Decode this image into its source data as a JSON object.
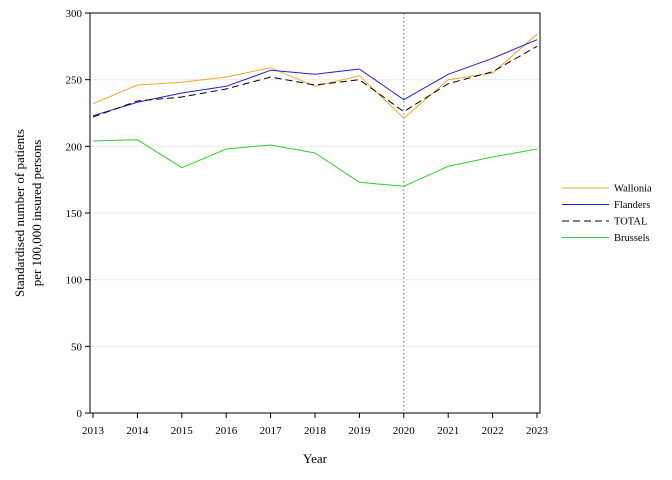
{
  "chart_data": {
    "type": "line",
    "title": "",
    "xlabel": "Year",
    "ylabel_line1": "Standardised number of patients",
    "ylabel_line2": "per 100,000 insured persons",
    "x": [
      "2013",
      "2014",
      "2015",
      "2016",
      "2017",
      "2018",
      "2019",
      "2020",
      "2021",
      "2022",
      "2023"
    ],
    "ylim": [
      0,
      300
    ],
    "yticks": [
      0,
      50,
      100,
      150,
      200,
      250,
      300
    ],
    "grid": "horizontal",
    "reference_line_x": "2020",
    "legend_position": "right",
    "series": [
      {
        "name": "Wallonia",
        "color": "#F5A623",
        "dash": "solid",
        "values": [
          232,
          246,
          248,
          252,
          259,
          245,
          253,
          221,
          250,
          255,
          284
        ]
      },
      {
        "name": "Flanders",
        "color": "#2020D8",
        "dash": "solid",
        "values": [
          223,
          233,
          240,
          245,
          257,
          254,
          258,
          235,
          254,
          266,
          280
        ]
      },
      {
        "name": "TOTAL",
        "color": "#000000",
        "dash": "dashed",
        "values": [
          222,
          234,
          237,
          243,
          252,
          246,
          250,
          226,
          247,
          256,
          275
        ]
      },
      {
        "name": "Brussels",
        "color": "#33CC33",
        "dash": "solid",
        "values": [
          204,
          205,
          184,
          198,
          201,
          195,
          173,
          170,
          185,
          192,
          198
        ]
      }
    ]
  }
}
